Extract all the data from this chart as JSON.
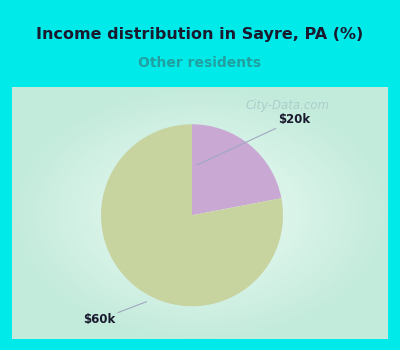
{
  "title": "Income distribution in Sayre, PA (%)",
  "subtitle": "Other residents",
  "subtitle_color": "#20a0a0",
  "title_color": "#1a1a2e",
  "slices": [
    {
      "label": "$20k",
      "value": 22,
      "color": "#c9a8d4"
    },
    {
      "label": "$60k",
      "value": 78,
      "color": "#c8d4a0"
    }
  ],
  "startangle": 90,
  "bg_color": "#00eaea",
  "chart_bg_inner": "#f0faf4",
  "chart_bg_outer": "#c8f0e8",
  "watermark": "City-Data.com",
  "watermark_color": "#a8c8c8",
  "arrow_color": "#a0a8c0"
}
